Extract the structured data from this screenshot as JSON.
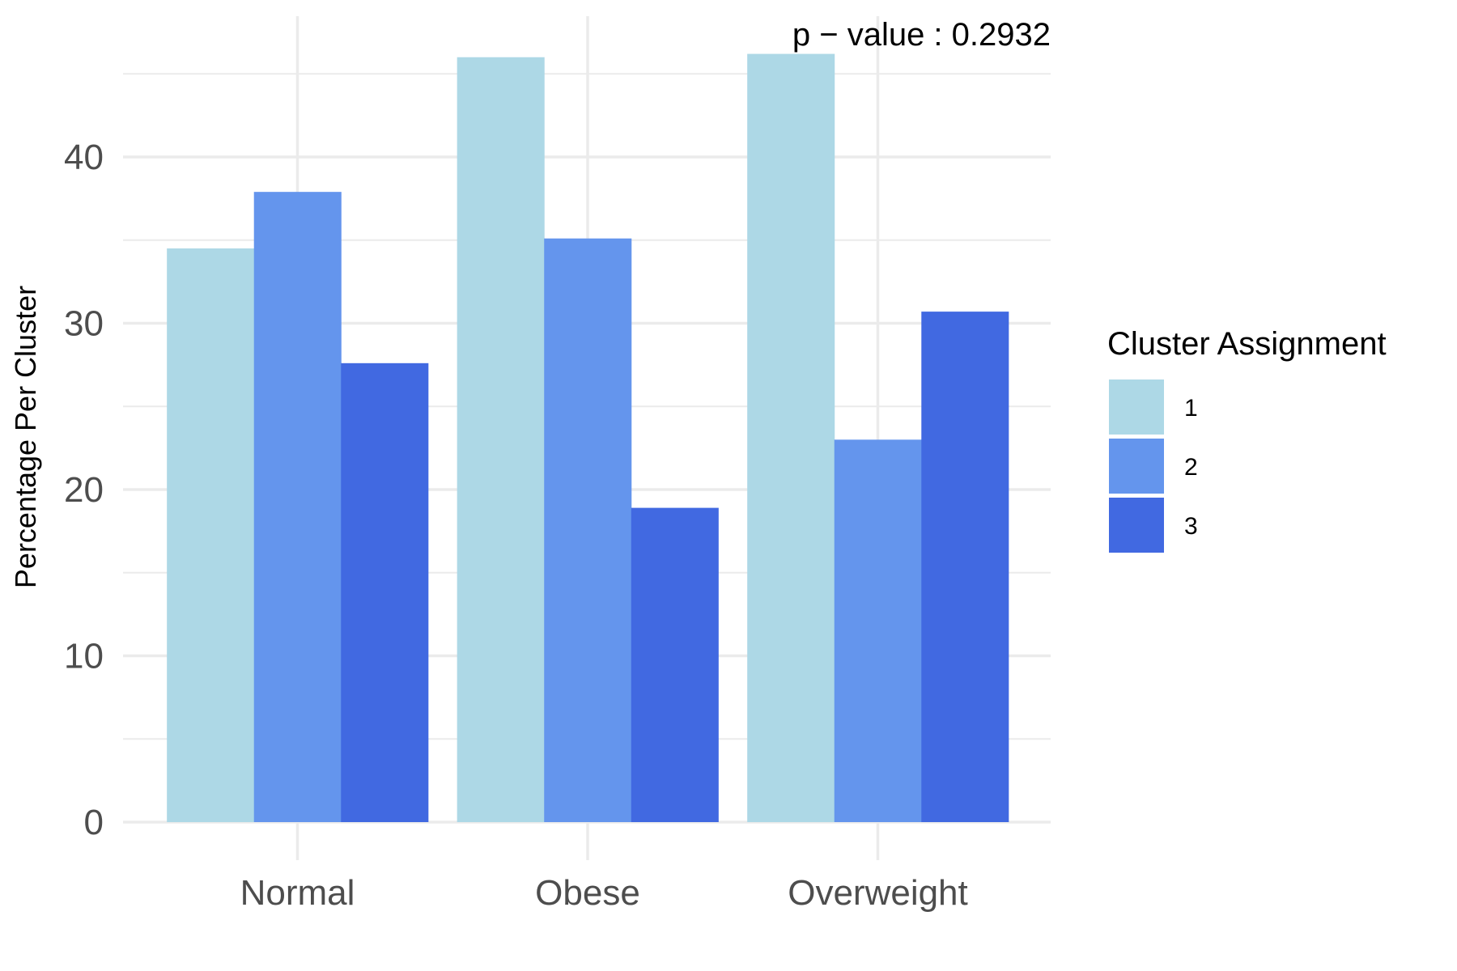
{
  "chart_data": {
    "type": "bar",
    "categories": [
      "Normal",
      "Obese",
      "Overweight"
    ],
    "series": [
      {
        "name": "1",
        "values": [
          34.5,
          46.0,
          46.2
        ],
        "color": "#add8e6"
      },
      {
        "name": "2",
        "values": [
          37.9,
          35.1,
          23.0
        ],
        "color": "#6495ed"
      },
      {
        "name": "3",
        "values": [
          27.6,
          18.9,
          30.7
        ],
        "color": "#4169e1"
      }
    ],
    "title": "",
    "xlabel": "",
    "ylabel": "Percentage Per Cluster",
    "ylim": [
      0,
      48.5
    ],
    "yticks": [
      0,
      10,
      20,
      30,
      40
    ],
    "ytick_labels": [
      "0",
      "10",
      "20",
      "30",
      "40"
    ],
    "grid": true,
    "annotation": "p − value : 0.2932",
    "legend": {
      "title": "Cluster Assignment",
      "placement": "right",
      "entries": [
        "1",
        "2",
        "3"
      ]
    }
  }
}
